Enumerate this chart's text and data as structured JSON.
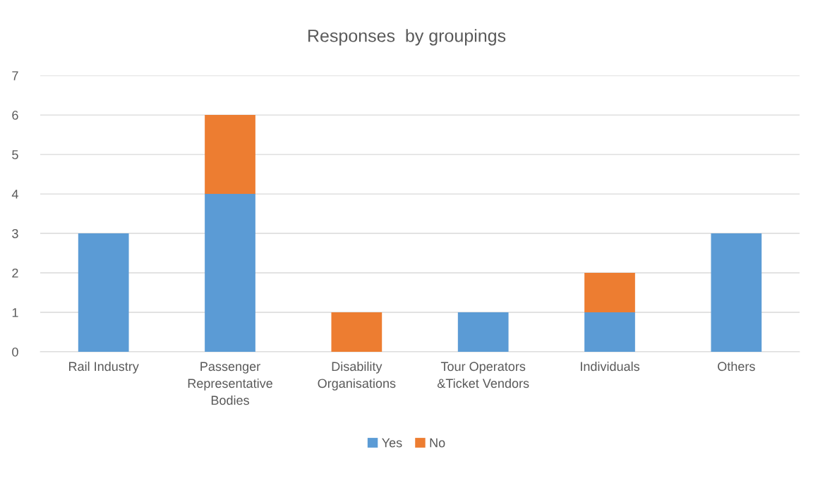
{
  "chart_data": {
    "type": "bar",
    "title": "Responses  by groupings",
    "categories": [
      "Rail Industry",
      "Passenger\nRepresentative\nBodies",
      "Disability\nOrganisations",
      "Tour Operators\n&Ticket Vendors",
      "Individuals",
      "Others"
    ],
    "series": [
      {
        "name": "Yes",
        "color": "#5b9bd5",
        "values": [
          3,
          4,
          null,
          1,
          1,
          3
        ]
      },
      {
        "name": "No",
        "color": "#ed7d31",
        "values": [
          null,
          2,
          1,
          null,
          1,
          null
        ]
      }
    ],
    "stacked": true,
    "ylim": [
      0,
      7
    ],
    "yticks": [
      0,
      1,
      2,
      3,
      4,
      5,
      6,
      7
    ],
    "grid": "y",
    "legend": "bottom"
  }
}
